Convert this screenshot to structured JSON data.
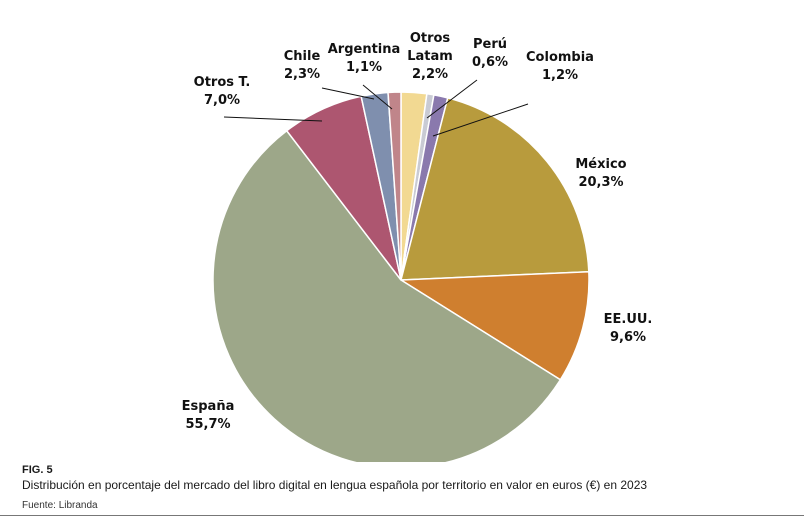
{
  "figure": {
    "number": "FIG. 5",
    "caption": "Distribución en porcentaje del mercado del libro digital en lengua española por territorio en valor en euros (€) en 2023",
    "source": "Fuente: Libranda"
  },
  "chart_data": {
    "type": "pie",
    "title": "",
    "unit": "%",
    "start_angle_deg": 0,
    "direction": "clockwise",
    "slices": [
      {
        "label": "Otros Latam",
        "label_lines": [
          "Otros",
          "Latam"
        ],
        "value": 2.2,
        "display": "2,2%",
        "color": "#f2d992"
      },
      {
        "label": "Perú",
        "label_lines": [
          "Perú"
        ],
        "value": 0.6,
        "display": "0,6%",
        "color": "#c9cbd4"
      },
      {
        "label": "Colombia",
        "label_lines": [
          "Colombia"
        ],
        "value": 1.2,
        "display": "1,2%",
        "color": "#8a79ad"
      },
      {
        "label": "México",
        "label_lines": [
          "México"
        ],
        "value": 20.3,
        "display": "20,3%",
        "color": "#b89b3d"
      },
      {
        "label": "EE.UU.",
        "label_lines": [
          "EE.UU."
        ],
        "value": 9.6,
        "display": "9,6%",
        "color": "#cf7f2f"
      },
      {
        "label": "España",
        "label_lines": [
          "España"
        ],
        "value": 55.7,
        "display": "55,7%",
        "color": "#9da789"
      },
      {
        "label": "Otros T.",
        "label_lines": [
          "Otros T."
        ],
        "value": 7.0,
        "display": "7,0%",
        "color": "#ad5670"
      },
      {
        "label": "Chile",
        "label_lines": [
          "Chile"
        ],
        "value": 2.3,
        "display": "2,3%",
        "color": "#7f8fae"
      },
      {
        "label": "Argentina",
        "label_lines": [
          "Argentina"
        ],
        "value": 1.1,
        "display": "1,1%",
        "color": "#c0858a"
      }
    ]
  }
}
